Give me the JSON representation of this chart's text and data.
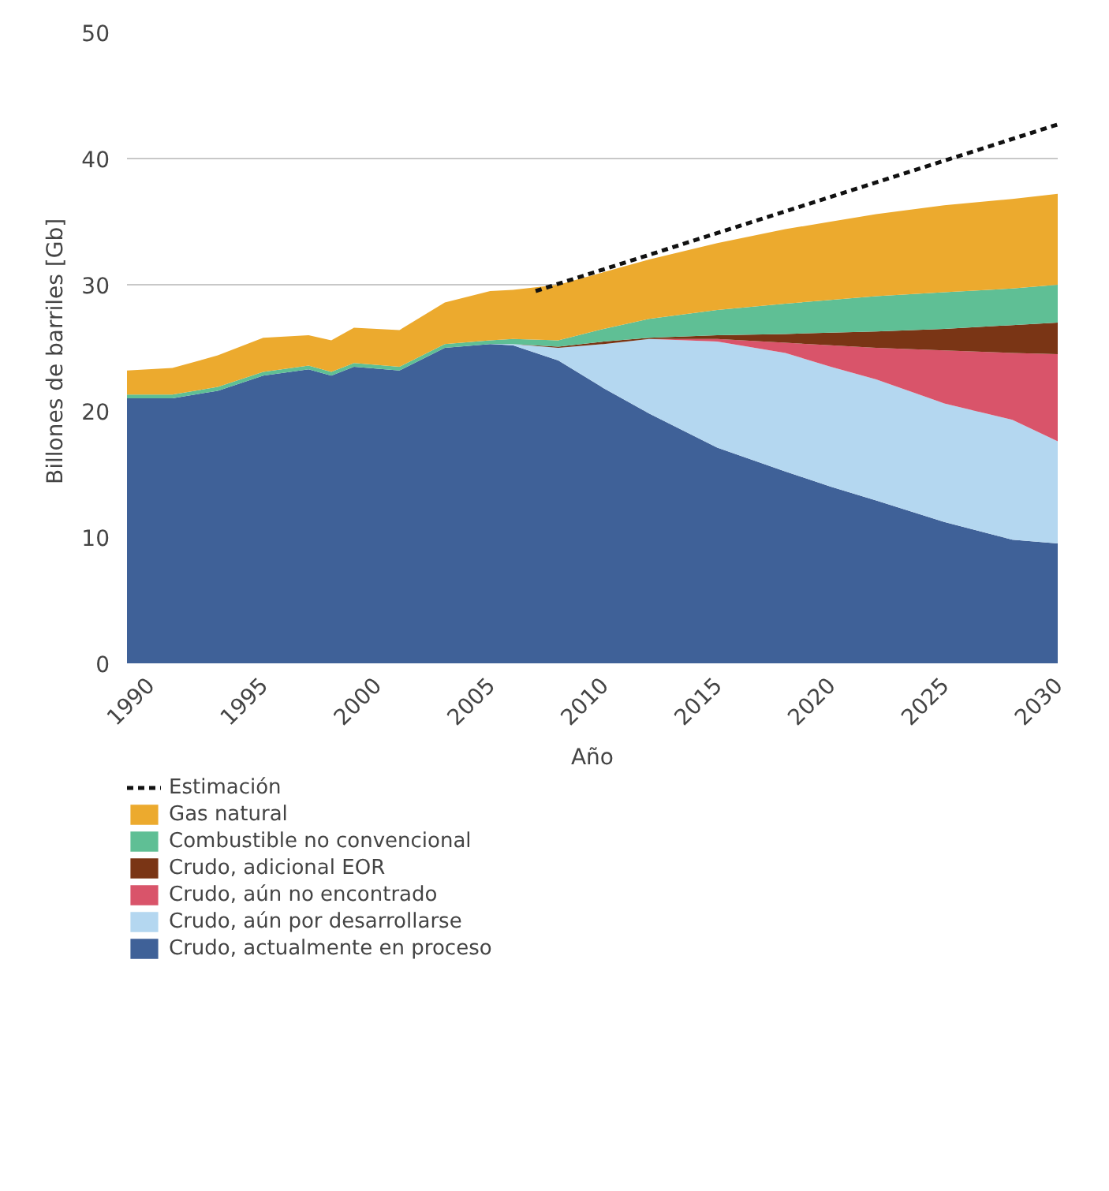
{
  "chart_data": {
    "type": "area",
    "stacked": true,
    "xlabel": "Año",
    "ylabel": "Billones de barriles  [Gb]",
    "x": [
      1989,
      1991,
      1993,
      1995,
      1997,
      1998,
      1999,
      2001,
      2003,
      2005,
      2006,
      2008,
      2010,
      2012,
      2015,
      2018,
      2020,
      2022,
      2025,
      2028,
      2030
    ],
    "xlim": [
      1989,
      2030
    ],
    "xticks": [
      1990,
      1995,
      2000,
      2005,
      2010,
      2015,
      2020,
      2025,
      2030
    ],
    "ylim": [
      0,
      50
    ],
    "yticks": [
      0,
      10,
      20,
      30,
      40,
      50
    ],
    "grid": "y",
    "legend": "bottom",
    "series": [
      {
        "name": "Crudo, actualmente en proceso",
        "color": "#3f6198",
        "values": [
          21.0,
          21.0,
          21.6,
          22.8,
          23.3,
          22.8,
          23.5,
          23.2,
          25.0,
          25.3,
          25.2,
          24.0,
          21.8,
          19.8,
          17.1,
          15.2,
          14.0,
          12.9,
          11.2,
          9.8,
          9.5
        ]
      },
      {
        "name": "Crudo, aún por desarrollarse",
        "color": "#b4d7f0",
        "values": [
          0,
          0,
          0,
          0,
          0,
          0,
          0,
          0,
          0,
          0,
          0.1,
          1.0,
          3.5,
          5.9,
          8.4,
          9.4,
          9.5,
          9.6,
          9.4,
          9.5,
          8.1
        ]
      },
      {
        "name": "Crudo, aún no encontrado",
        "color": "#d9546a",
        "values": [
          0,
          0,
          0,
          0,
          0,
          0,
          0,
          0,
          0,
          0,
          0,
          0,
          0,
          0,
          0.2,
          0.8,
          1.7,
          2.5,
          4.2,
          5.3,
          6.9
        ]
      },
      {
        "name": "Crudo, adicional EOR",
        "color": "#7a3515",
        "values": [
          0,
          0,
          0,
          0,
          0,
          0,
          0,
          0,
          0,
          0,
          0,
          0.1,
          0.2,
          0.1,
          0.3,
          0.7,
          1.0,
          1.3,
          1.7,
          2.2,
          2.5
        ]
      },
      {
        "name": "Combustible no convencional",
        "color": "#5fbf95",
        "values": [
          0.3,
          0.3,
          0.3,
          0.3,
          0.3,
          0.3,
          0.3,
          0.3,
          0.3,
          0.3,
          0.4,
          0.5,
          1.0,
          1.5,
          2.0,
          2.4,
          2.6,
          2.8,
          2.9,
          2.9,
          3.0
        ]
      },
      {
        "name": "Gas natural",
        "color": "#ecaa2e",
        "values": [
          1.9,
          2.1,
          2.5,
          2.7,
          2.4,
          2.5,
          2.8,
          2.9,
          3.3,
          3.9,
          3.9,
          4.4,
          4.5,
          4.7,
          5.3,
          5.9,
          6.2,
          6.5,
          6.9,
          7.1,
          7.2
        ]
      },
      {
        "name": "Estimación",
        "type": "line",
        "line_style": "dashed",
        "color": "#111111",
        "x": [
          2007,
          2030
        ],
        "values": [
          29.5,
          42.7
        ]
      }
    ]
  }
}
